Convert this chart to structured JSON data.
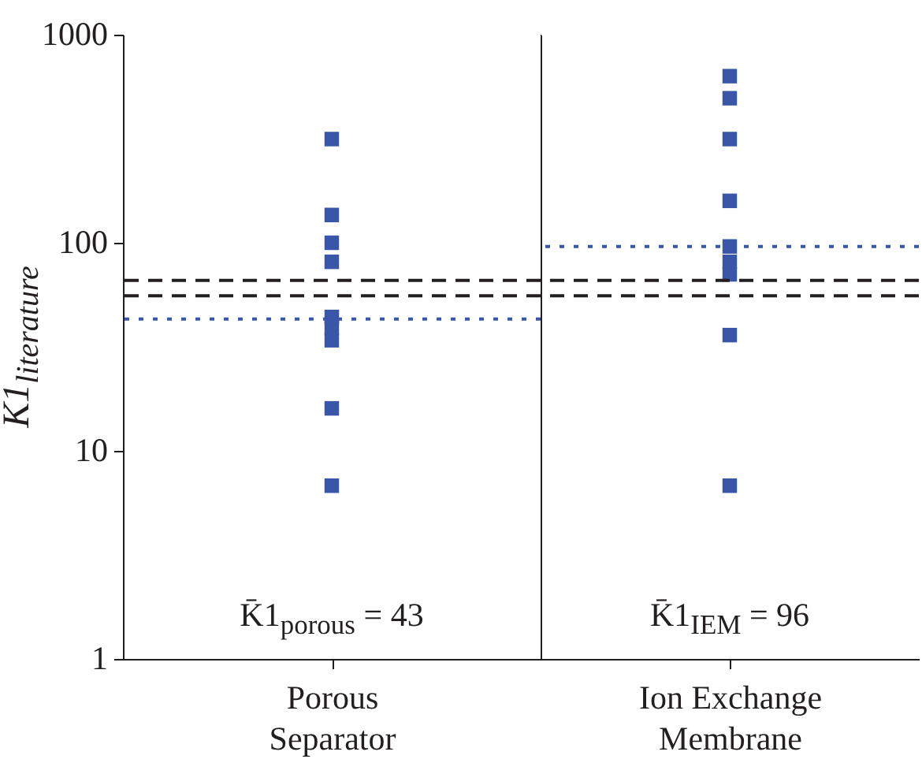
{
  "chart_data": [
    {
      "type": "scatter",
      "ylabel": "K1$_{literature}$",
      "categories": [
        "Porous Separator"
      ],
      "log": "y",
      "ylim": [
        1,
        1000
      ],
      "yticks": [
        1,
        10,
        100,
        1000
      ],
      "marker": "square",
      "grid": false,
      "series": [
        {
          "color": "#3a56a8",
          "x": [
            "Porous Separator",
            "Porous Separator",
            "Porous Separator",
            "Porous Separator",
            "Porous Separator",
            "Porous Separator",
            "Porous Separator",
            "Porous Separator",
            "Porous Separator"
          ],
          "values": [
            315,
            136,
            100,
            81,
            44,
            39,
            34,
            16,
            6.8
          ]
        }
      ],
      "ref_lines": [
        {
          "axis": "y",
          "value": 66,
          "color": "#231f20",
          "line_style": "dashed"
        },
        {
          "axis": "y",
          "value": 55.6,
          "color": "#231f20",
          "line_style": "dashed"
        },
        {
          "axis": "y",
          "value": 43,
          "color": "#3a56a8",
          "line_style": "dotted"
        }
      ],
      "annotations": [
        "K̄1$_{porous}$ = 43"
      ]
    },
    {
      "type": "scatter",
      "categories": [
        "Ion Exchange Membrane"
      ],
      "log": "y",
      "ylim": [
        1,
        1000
      ],
      "yticks": [
        1,
        10,
        100,
        1000
      ],
      "marker": "square",
      "grid": false,
      "tick_labels": "x",
      "series": [
        {
          "color": "#3a56a8",
          "x": [
            "Ion Exchange Membrane",
            "Ion Exchange Membrane",
            "Ion Exchange Membrane",
            "Ion Exchange Membrane",
            "Ion Exchange Membrane",
            "Ion Exchange Membrane",
            "Ion Exchange Membrane",
            "Ion Exchange Membrane",
            "Ion Exchange Membrane"
          ],
          "values": [
            632,
            495,
            315,
            159,
            96,
            81,
            70.5,
            36,
            6.8
          ]
        }
      ],
      "ref_lines": [
        {
          "axis": "y",
          "value": 66,
          "color": "#231f20",
          "line_style": "dashed"
        },
        {
          "axis": "y",
          "value": 55.6,
          "color": "#231f20",
          "line_style": "dashed"
        },
        {
          "axis": "y",
          "value": 96,
          "color": "#3a56a8",
          "line_style": "dotted"
        }
      ],
      "annotations": [
        "K̄1$_{IEM}$ = 96"
      ]
    }
  ]
}
